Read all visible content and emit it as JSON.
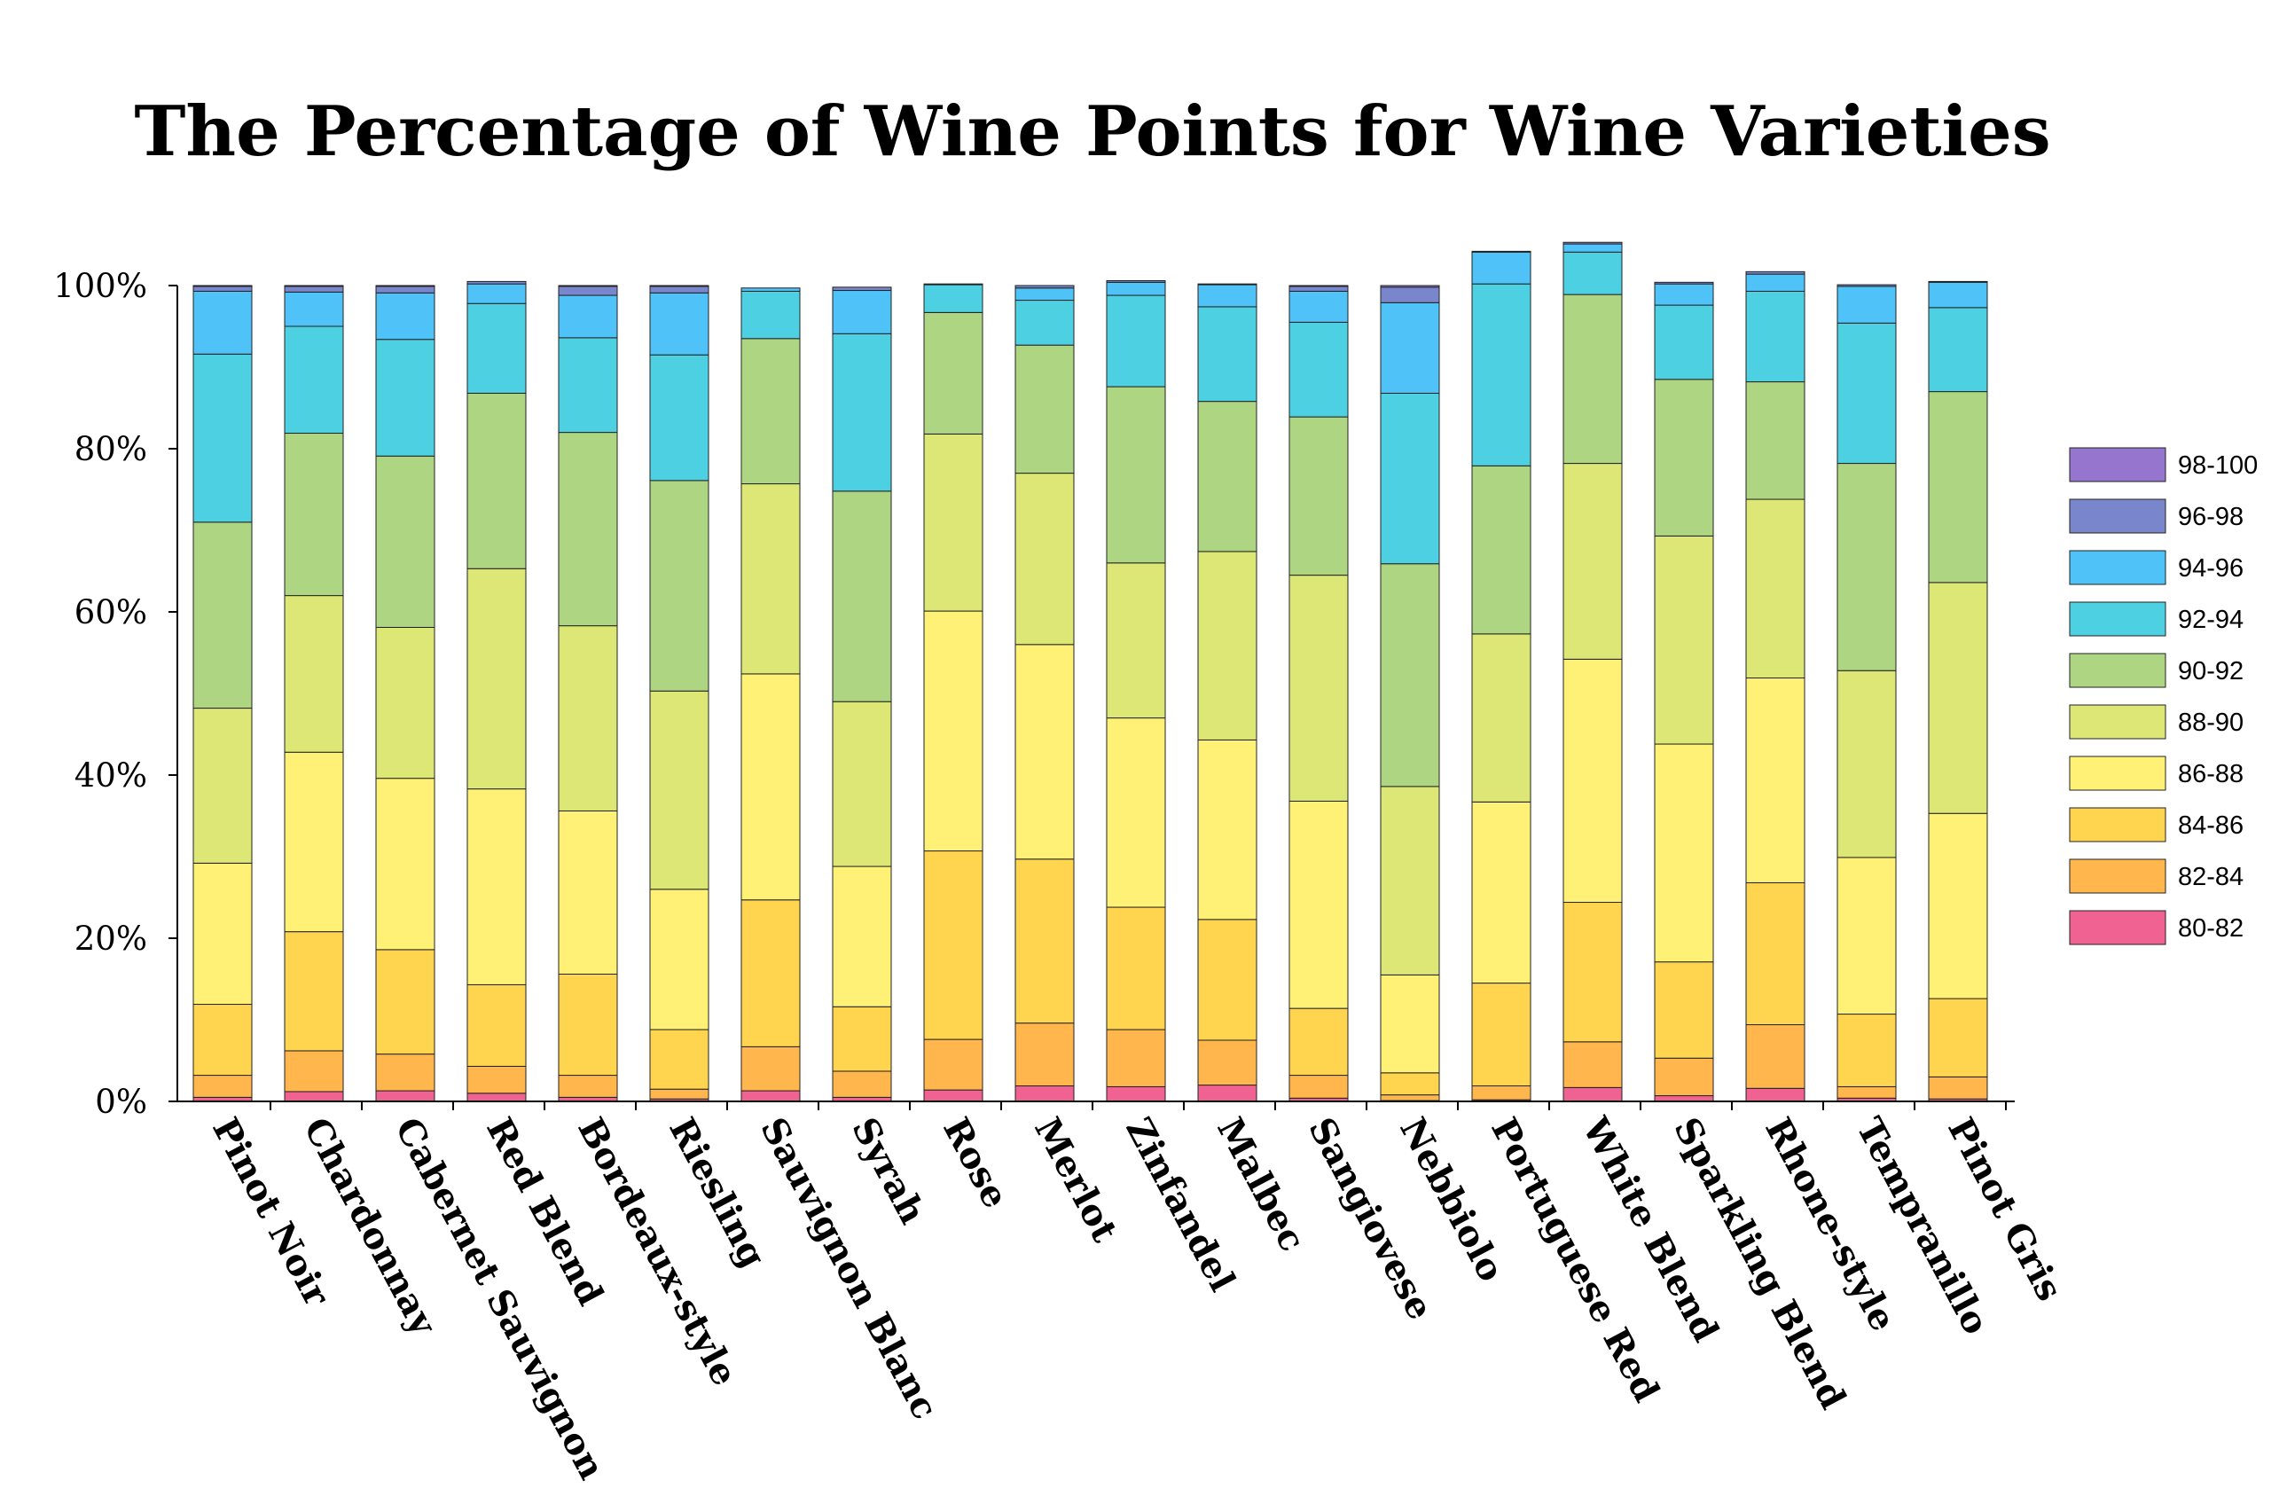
{
  "chart_data": {
    "type": "bar",
    "stacked": true,
    "normalized_percent": true,
    "title": "The Percentage of Wine Points for Wine Varieties",
    "xlabel": "",
    "ylabel": "",
    "ylim": [
      0,
      100
    ],
    "y_ticks": [
      "0%",
      "20%",
      "40%",
      "60%",
      "80%",
      "100%"
    ],
    "grid": false,
    "legend_position": "right",
    "categories": [
      "Pinot Noir",
      "Chardonnay",
      "Cabernet Sauvignon",
      "Red Blend",
      "Bordeaux-style",
      "Riesling",
      "Sauvignon Blanc",
      "Syrah",
      "Rose",
      "Merlot",
      "Zinfandel",
      "Malbec",
      "Sangiovese",
      "Nebbiolo",
      "Portuguese Red",
      "White Blend",
      "Sparkling Blend",
      "Rhone-style",
      "Tempranillo",
      "Pinot Gris"
    ],
    "series": [
      {
        "name": "80-82",
        "color": "#f06292",
        "values": [
          0.5,
          1.2,
          1.3,
          1.0,
          0.5,
          0.3,
          1.3,
          0.5,
          1.4,
          1.9,
          1.8,
          2.0,
          0.4,
          0.1,
          0.2,
          1.7,
          0.7,
          1.6,
          0.4,
          0.3
        ]
      },
      {
        "name": "82-84",
        "color": "#ffb74d",
        "values": [
          2.7,
          5.0,
          4.5,
          3.3,
          2.7,
          1.2,
          5.4,
          3.2,
          6.2,
          7.7,
          7.0,
          5.5,
          2.8,
          0.7,
          1.7,
          5.6,
          4.6,
          7.8,
          1.4,
          2.7
        ]
      },
      {
        "name": "84-86",
        "color": "#ffd54f",
        "values": [
          8.7,
          14.6,
          12.8,
          10.0,
          12.4,
          7.3,
          18.0,
          7.9,
          23.1,
          20.1,
          15.0,
          14.8,
          8.2,
          2.7,
          12.6,
          17.1,
          11.8,
          17.4,
          8.9,
          9.6
        ]
      },
      {
        "name": "86-88",
        "color": "#fff176",
        "values": [
          17.3,
          22.0,
          21.0,
          24.0,
          20.0,
          17.2,
          27.7,
          17.2,
          29.4,
          26.3,
          23.2,
          22.0,
          25.4,
          12.0,
          22.2,
          29.8,
          26.7,
          25.1,
          19.2,
          22.7
        ]
      },
      {
        "name": "88-90",
        "color": "#dce775",
        "values": [
          19.0,
          19.2,
          18.5,
          27.0,
          22.7,
          24.3,
          23.3,
          20.2,
          21.7,
          21.0,
          19.0,
          23.1,
          27.7,
          23.1,
          20.6,
          24.0,
          25.5,
          21.9,
          22.9,
          28.3
        ]
      },
      {
        "name": "90-92",
        "color": "#aed581",
        "values": [
          22.8,
          19.9,
          21.0,
          21.5,
          23.7,
          25.8,
          17.8,
          25.8,
          14.9,
          15.7,
          21.6,
          18.4,
          19.4,
          27.3,
          20.6,
          20.7,
          19.2,
          14.4,
          25.4,
          23.4
        ]
      },
      {
        "name": "92-94",
        "color": "#4dd0e1",
        "values": [
          20.6,
          13.1,
          14.3,
          11.0,
          11.6,
          15.4,
          5.8,
          19.3,
          3.4,
          5.5,
          11.2,
          11.6,
          11.6,
          20.9,
          22.3,
          5.2,
          9.1,
          11.1,
          17.2,
          10.3
        ]
      },
      {
        "name": "94-96",
        "color": "#4fc3f7",
        "values": [
          7.7,
          4.2,
          5.7,
          2.4,
          5.2,
          7.6,
          0.4,
          5.3,
          0.1,
          1.5,
          1.6,
          2.7,
          3.8,
          11.1,
          3.9,
          1.0,
          2.6,
          2.1,
          4.5,
          3.1
        ]
      },
      {
        "name": "96-98",
        "color": "#7986cb",
        "values": [
          0.6,
          0.7,
          0.8,
          0.3,
          1.1,
          0.8,
          0.0,
          0.4,
          0.0,
          0.3,
          0.2,
          0.1,
          0.6,
          1.9,
          0.1,
          0.2,
          0.2,
          0.3,
          0.2,
          0.1
        ]
      },
      {
        "name": "98-100",
        "color": "#9575cd",
        "values": [
          0.1,
          0.1,
          0.1,
          0.0,
          0.1,
          0.1,
          0.0,
          0.0,
          0.0,
          0.0,
          0.0,
          0.0,
          0.1,
          0.2,
          0.0,
          0.0,
          0.0,
          0.0,
          0.0,
          0.0
        ]
      }
    ]
  }
}
